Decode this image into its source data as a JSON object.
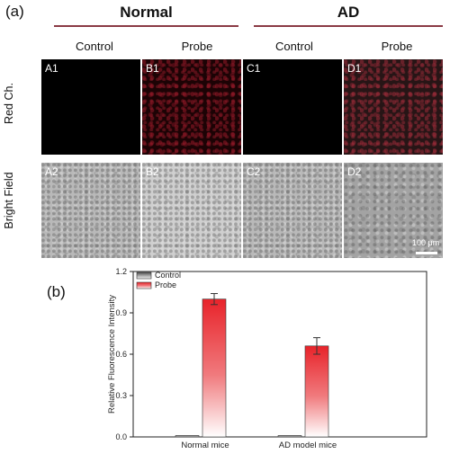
{
  "panel_a": {
    "letter": "(a)",
    "groups": [
      "Normal",
      "AD"
    ],
    "columns": [
      "Control",
      "Probe",
      "Control",
      "Probe"
    ],
    "rows": [
      "Red Ch.",
      "Bright Field"
    ],
    "tiles": [
      [
        "A1",
        "B1",
        "C1",
        "D1"
      ],
      [
        "A2",
        "B2",
        "C2",
        "D2"
      ]
    ],
    "scale_bar": "100 μm"
  },
  "panel_b": {
    "letter": "(b)"
  },
  "chart_data": {
    "type": "bar",
    "categories": [
      "Normal mice",
      "AD model mice"
    ],
    "series": [
      {
        "name": "Control",
        "values": [
          0.01,
          0.01
        ],
        "errors": [
          0.0,
          0.0
        ],
        "color": "#555555"
      },
      {
        "name": "Probe",
        "values": [
          1.0,
          0.66
        ],
        "errors": [
          0.04,
          0.06
        ],
        "color": "#e8232a"
      }
    ],
    "ylabel": "Relative Fluorescence Intensity",
    "xlabel": "",
    "ylim": [
      0,
      1.2
    ],
    "yticks": [
      "0.0",
      "0.3",
      "0.6",
      "0.9",
      "1.2"
    ],
    "legend": "top-left",
    "grid": false
  }
}
